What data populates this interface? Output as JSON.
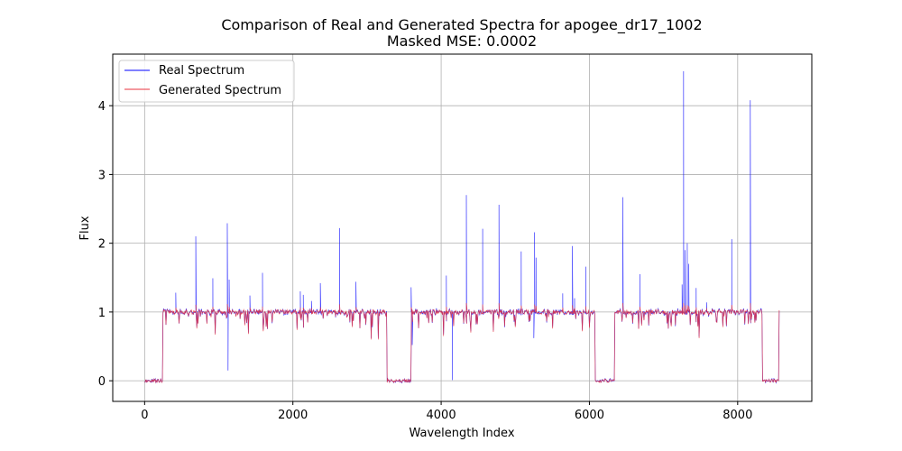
{
  "chart_data": {
    "type": "line",
    "title": "Comparison of Real and Generated Spectra for apogee_dr17_1002",
    "subtitle": "Masked MSE: 0.0002",
    "xlabel": "Wavelength Index",
    "ylabel": "Flux",
    "xlim": [
      -430,
      9000
    ],
    "ylim": [
      -0.3,
      4.75
    ],
    "xticks": [
      0,
      2000,
      4000,
      6000,
      8000
    ],
    "yticks": [
      0,
      1,
      2,
      3,
      4
    ],
    "grid": true,
    "legend_position": "top-left",
    "series": [
      {
        "name": "Real Spectrum",
        "color": "#0000ff"
      },
      {
        "name": "Generated Spectrum",
        "color": "#e8323c"
      }
    ],
    "segments": {
      "masked_zero": [
        [
          0,
          245
        ],
        [
          3270,
          3600
        ],
        [
          6080,
          6340
        ],
        [
          8330,
          8560
        ]
      ],
      "continuum": [
        [
          245,
          3270
        ],
        [
          3600,
          6080
        ],
        [
          6340,
          8330
        ]
      ]
    },
    "real_peaks": [
      [
        420,
        1.28
      ],
      [
        690,
        2.1
      ],
      [
        920,
        1.49
      ],
      [
        1115,
        2.29
      ],
      [
        1125,
        0.15
      ],
      [
        1140,
        1.47
      ],
      [
        1420,
        1.24
      ],
      [
        1590,
        1.57
      ],
      [
        2100,
        1.3
      ],
      [
        2140,
        1.25
      ],
      [
        2250,
        1.16
      ],
      [
        2370,
        1.42
      ],
      [
        2630,
        2.22
      ],
      [
        2850,
        1.44
      ],
      [
        3595,
        1.36
      ],
      [
        3610,
        0.52
      ],
      [
        4070,
        1.53
      ],
      [
        4150,
        0.01
      ],
      [
        4340,
        2.7
      ],
      [
        4560,
        2.21
      ],
      [
        4780,
        2.56
      ],
      [
        5080,
        1.88
      ],
      [
        5250,
        0.62
      ],
      [
        5260,
        2.16
      ],
      [
        5280,
        1.79
      ],
      [
        5640,
        1.27
      ],
      [
        5770,
        1.96
      ],
      [
        5800,
        1.2
      ],
      [
        5950,
        1.66
      ],
      [
        6450,
        2.67
      ],
      [
        6680,
        1.55
      ],
      [
        7250,
        1.4
      ],
      [
        7270,
        4.5
      ],
      [
        7290,
        1.9
      ],
      [
        7320,
        2.0
      ],
      [
        7340,
        1.7
      ],
      [
        7440,
        1.35
      ],
      [
        7580,
        1.14
      ],
      [
        7920,
        2.06
      ],
      [
        8170,
        4.08
      ]
    ],
    "absorption_dips": [
      [
        700,
        0.76
      ],
      [
        950,
        0.67
      ],
      [
        1400,
        0.68
      ],
      [
        1600,
        0.72
      ],
      [
        2050,
        0.74
      ],
      [
        2800,
        0.78
      ],
      [
        3050,
        0.6
      ],
      [
        3150,
        0.6
      ],
      [
        4030,
        0.65
      ],
      [
        4400,
        0.7
      ],
      [
        4700,
        0.71
      ],
      [
        5000,
        0.78
      ],
      [
        5500,
        0.76
      ],
      [
        5900,
        0.72
      ],
      [
        6000,
        0.77
      ],
      [
        6700,
        0.8
      ],
      [
        7100,
        0.79
      ],
      [
        7480,
        0.62
      ],
      [
        7800,
        0.78
      ]
    ]
  }
}
